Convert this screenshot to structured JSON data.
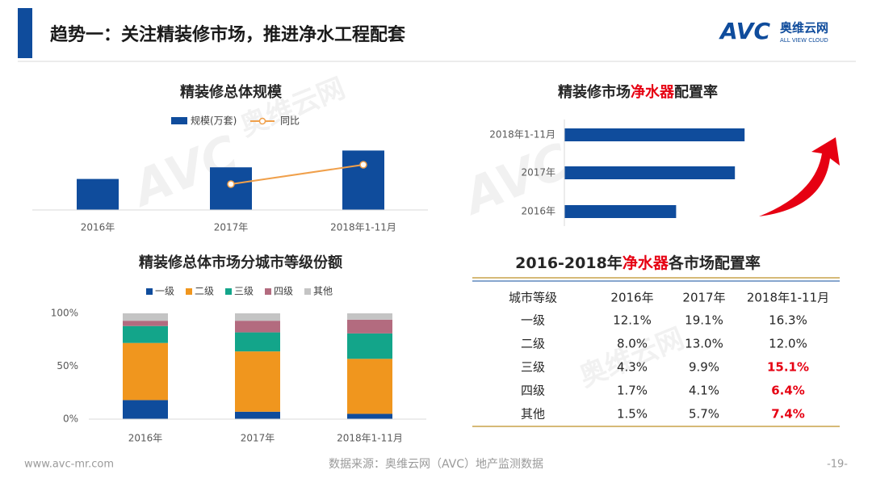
{
  "header": {
    "title": "趋势一：关注精装修市场，推进净水工程配套",
    "logo": "AVC",
    "logo_cn": "奥维云网",
    "logo_en": "ALL VIEW CLOUD"
  },
  "chart_data": [
    {
      "type": "bar-line",
      "title": "精装修总体规模",
      "categories": [
        "2016年",
        "2017年",
        "2018年1-11月"
      ],
      "series": [
        {
          "name": "规模(万套)",
          "color": "#0f4c9c",
          "values": [
            96,
            132,
            184
          ]
        },
        {
          "name": "同比",
          "color": "#f0a04b",
          "axis": "y2",
          "values": [
            null,
            40,
            70
          ]
        }
      ],
      "ylim": [
        0,
        200
      ],
      "y2lim": [
        0,
        100
      ]
    },
    {
      "type": "hbar",
      "title": [
        "精装修市场",
        "净水器",
        "配置率"
      ],
      "title_highlight": 1,
      "highlight_color": "#e60012",
      "categories": [
        "2018年1-11月",
        "2017年",
        "2016年"
      ],
      "values": [
        27.9,
        26.4,
        17.3
      ],
      "color": "#0f4c9c",
      "xlim": [
        0,
        30
      ]
    },
    {
      "type": "stacked-bar",
      "title": "精装修总体市场分城市等级份额",
      "categories": [
        "2016年",
        "2017年",
        "2018年1-11月"
      ],
      "series": [
        {
          "name": "一级",
          "color": "#0f4c9c",
          "values": [
            18,
            7,
            5
          ]
        },
        {
          "name": "二级",
          "color": "#f0961e",
          "values": [
            54,
            57,
            52
          ]
        },
        {
          "name": "三级",
          "color": "#13a58a",
          "values": [
            16,
            18,
            24
          ]
        },
        {
          "name": "四级",
          "color": "#b36b7f",
          "values": [
            5,
            11,
            13
          ]
        },
        {
          "name": "其他",
          "color": "#c4c4c4",
          "values": [
            7,
            7,
            6
          ]
        }
      ],
      "ylim": [
        0,
        100
      ],
      "yticks": [
        {
          "value": 0,
          "label": "0%"
        },
        {
          "value": 50,
          "label": "50%"
        },
        {
          "value": 100,
          "label": "100%"
        }
      ]
    }
  ],
  "table": {
    "title": [
      "2016-2018年",
      "净水器",
      "各市场配置率"
    ],
    "title_highlight": 1,
    "highlight_color": "#e60012",
    "header": [
      "城市等级",
      "2016年",
      "2017年",
      "2018年1-11月"
    ],
    "rows": [
      [
        "一级",
        "12.1%",
        "19.1%",
        "16.3%"
      ],
      [
        "二级",
        "8.0%",
        "13.0%",
        "12.0%"
      ],
      [
        "三级",
        "4.3%",
        "9.9%",
        {
          "text": "15.1%",
          "emphasis": true
        }
      ],
      [
        "四级",
        "1.7%",
        "4.1%",
        {
          "text": "6.4%",
          "emphasis": true
        }
      ],
      [
        "其他",
        "1.5%",
        "5.7%",
        {
          "text": "7.4%",
          "emphasis": true
        }
      ]
    ]
  },
  "footer": {
    "site": "www.avc-mr.com",
    "source": "数据来源：奥维云网（AVC）地产监测数据",
    "page": "-19-"
  }
}
